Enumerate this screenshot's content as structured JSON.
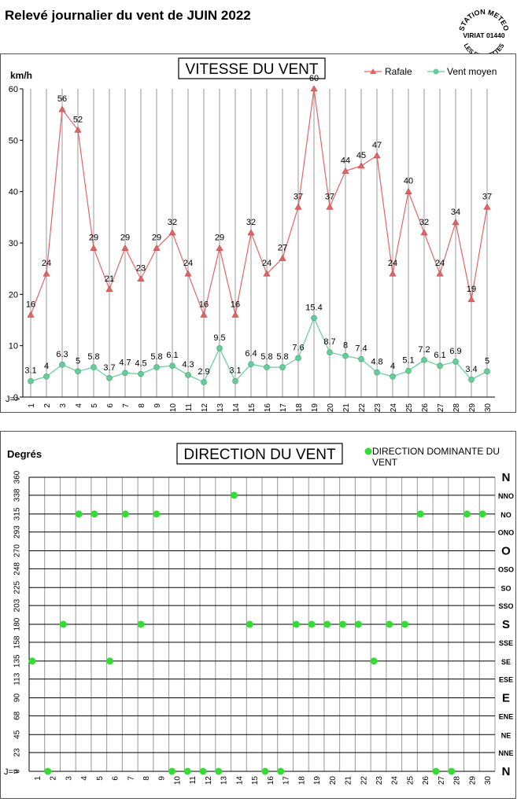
{
  "page": {
    "title": "Relevé journalier du vent de JUIN 2022",
    "stamp": {
      "top": "STATION METEO",
      "middle": "VIRIAT 01440",
      "bottom": "LES FAUVETTES"
    }
  },
  "colors": {
    "gust": "#e06666",
    "mean": "#66cc99",
    "direction": "#33dd33",
    "grid": "#999999"
  },
  "chart_data": [
    {
      "type": "line",
      "title": "VITESSE DU VENT",
      "ylabel": "km/h",
      "xlabel": "J=>",
      "ylim": [
        0,
        60
      ],
      "yticks": [
        0,
        10,
        20,
        30,
        40,
        50,
        60
      ],
      "grid": true,
      "legend_position": "top-right",
      "x": [
        1,
        2,
        3,
        4,
        5,
        6,
        7,
        8,
        9,
        10,
        11,
        12,
        13,
        14,
        15,
        16,
        17,
        18,
        19,
        20,
        21,
        22,
        23,
        24,
        25,
        26,
        27,
        28,
        29,
        30
      ],
      "series": [
        {
          "name": "Rafale",
          "color": "#e06666",
          "marker": "triangle",
          "values": [
            16,
            24,
            56,
            52,
            29,
            21,
            29,
            23,
            29,
            32,
            24,
            16,
            29,
            16,
            32,
            24,
            27,
            37,
            60,
            37,
            44,
            45,
            47,
            24,
            40,
            32,
            24,
            34,
            19,
            37
          ]
        },
        {
          "name": "Vent moyen",
          "color": "#66cc99",
          "marker": "circle",
          "values": [
            3.1,
            4,
            6.3,
            5,
            5.8,
            3.7,
            4.7,
            4.5,
            5.8,
            6.1,
            4.3,
            2.9,
            9.5,
            3.1,
            6.4,
            5.8,
            5.8,
            7.6,
            15.4,
            8.7,
            8,
            7.4,
            4.8,
            4,
            5.1,
            7.2,
            6.1,
            6.9,
            3.4,
            5
          ]
        }
      ]
    },
    {
      "type": "scatter",
      "title": "DIRECTION DU VENT",
      "ylabel": "Degrés",
      "xlabel": "J=>",
      "ylim": [
        0,
        360
      ],
      "yticks": [
        0,
        23,
        45,
        68,
        90,
        113,
        135,
        158,
        180,
        203,
        225,
        248,
        270,
        293,
        315,
        338,
        360
      ],
      "direction_labels": [
        "N",
        "NNE",
        "NE",
        "ENE",
        "E",
        "ESE",
        "SE",
        "SSE",
        "S",
        "SSO",
        "SO",
        "OSO",
        "O",
        "ONO",
        "NO",
        "NNO",
        "N"
      ],
      "grid": true,
      "legend_position": "top-right",
      "x": [
        1,
        2,
        3,
        4,
        5,
        6,
        7,
        8,
        9,
        10,
        11,
        12,
        13,
        14,
        15,
        16,
        17,
        18,
        19,
        20,
        21,
        22,
        23,
        24,
        25,
        26,
        27,
        28,
        29,
        30
      ],
      "series": [
        {
          "name": "DIRECTION DOMINANTE DU VENT",
          "color": "#33dd33",
          "values": [
            135,
            0,
            180,
            315,
            315,
            135,
            315,
            180,
            315,
            0,
            0,
            0,
            0,
            338,
            180,
            0,
            0,
            180,
            180,
            180,
            180,
            180,
            135,
            180,
            180,
            315,
            0,
            0,
            315,
            315
          ]
        }
      ]
    }
  ]
}
